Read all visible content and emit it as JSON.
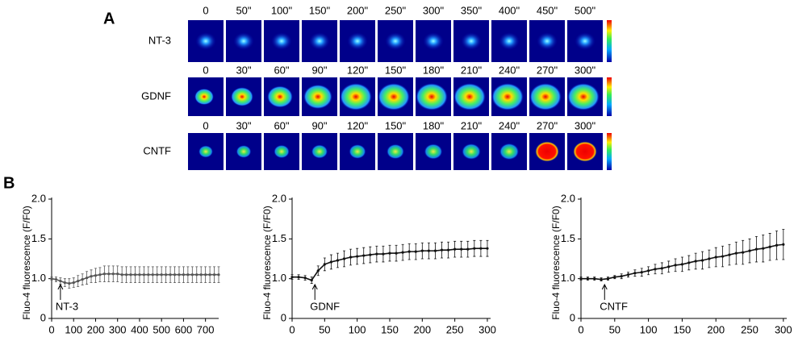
{
  "panel_a": {
    "label": "A",
    "rows": [
      {
        "name": "NT-3",
        "times": [
          "0",
          "50\"",
          "100\"",
          "150\"",
          "200\"",
          "250\"",
          "300\"",
          "350\"",
          "400\"",
          "450\"",
          "500\""
        ]
      },
      {
        "name": "GDNF",
        "times": [
          "0",
          "30\"",
          "60\"",
          "90\"",
          "120\"",
          "150\"",
          "180\"",
          "210\"",
          "240\"",
          "270\"",
          "300\""
        ]
      },
      {
        "name": "CNTF",
        "times": [
          "0",
          "30\"",
          "60\"",
          "90\"",
          "120\"",
          "150\"",
          "180\"",
          "210\"",
          "240\"",
          "270\"",
          "300\""
        ]
      }
    ]
  },
  "panel_b": {
    "label": "B"
  },
  "chart_data": [
    {
      "type": "line",
      "ylabel": "Fluo-4 fluorescence (F/F0)",
      "x": [
        0,
        20,
        40,
        60,
        80,
        100,
        120,
        140,
        160,
        180,
        200,
        220,
        240,
        260,
        280,
        300,
        320,
        340,
        360,
        380,
        400,
        420,
        440,
        460,
        480,
        500,
        520,
        540,
        560,
        580,
        600,
        620,
        640,
        660,
        680,
        700,
        720,
        740,
        760
      ],
      "series": [
        {
          "color": "#555555",
          "values": [
            1.0,
            0.99,
            0.97,
            0.95,
            0.94,
            0.95,
            0.97,
            0.99,
            1.01,
            1.03,
            1.04,
            1.05,
            1.06,
            1.06,
            1.06,
            1.06,
            1.05,
            1.05,
            1.05,
            1.05,
            1.05,
            1.05,
            1.05,
            1.05,
            1.05,
            1.05,
            1.05,
            1.05,
            1.05,
            1.05,
            1.05,
            1.05,
            1.05,
            1.05,
            1.05,
            1.05,
            1.05,
            1.05,
            1.05
          ],
          "errors": [
            0.02,
            0.03,
            0.04,
            0.05,
            0.06,
            0.06,
            0.07,
            0.07,
            0.08,
            0.08,
            0.09,
            0.09,
            0.1,
            0.1,
            0.1,
            0.1,
            0.1,
            0.1,
            0.1,
            0.1,
            0.1,
            0.1,
            0.1,
            0.1,
            0.1,
            0.1,
            0.1,
            0.1,
            0.1,
            0.1,
            0.1,
            0.1,
            0.1,
            0.1,
            0.1,
            0.1,
            0.1,
            0.1,
            0.1
          ]
        }
      ],
      "annotation": {
        "text": "NT-3",
        "x": 40
      },
      "xlim": [
        0,
        760
      ],
      "xticks": [
        0,
        100,
        200,
        300,
        400,
        500,
        600,
        700
      ],
      "ylim": [
        0,
        2
      ],
      "ybreak": [
        0,
        0.5
      ],
      "yticks": [
        0,
        {
          "value": 1,
          "label": "1.0"
        },
        {
          "value": 1.5,
          "label": "1.5"
        },
        {
          "value": 2,
          "label": "2.0"
        }
      ]
    },
    {
      "type": "line",
      "ylabel": "Fluo-4 fluorescence (F/F0)",
      "x": [
        0,
        10,
        20,
        30,
        40,
        50,
        60,
        70,
        80,
        90,
        100,
        110,
        120,
        130,
        140,
        150,
        160,
        170,
        180,
        190,
        200,
        210,
        220,
        230,
        240,
        250,
        260,
        270,
        280,
        290,
        300
      ],
      "series": [
        {
          "color": "#111111",
          "values": [
            1.02,
            1.02,
            1.01,
            0.98,
            1.1,
            1.18,
            1.21,
            1.23,
            1.25,
            1.27,
            1.28,
            1.29,
            1.3,
            1.31,
            1.31,
            1.32,
            1.32,
            1.33,
            1.34,
            1.34,
            1.35,
            1.35,
            1.35,
            1.36,
            1.36,
            1.37,
            1.37,
            1.37,
            1.38,
            1.38,
            1.38
          ],
          "errors": [
            0.03,
            0.03,
            0.03,
            0.04,
            0.06,
            0.08,
            0.09,
            0.09,
            0.1,
            0.1,
            0.1,
            0.1,
            0.1,
            0.1,
            0.1,
            0.1,
            0.1,
            0.1,
            0.1,
            0.1,
            0.1,
            0.1,
            0.1,
            0.1,
            0.1,
            0.1,
            0.1,
            0.1,
            0.1,
            0.1,
            0.1
          ]
        }
      ],
      "annotation": {
        "text": "GDNF",
        "x": 35
      },
      "xlim": [
        0,
        305
      ],
      "xticks": [
        0,
        50,
        100,
        150,
        200,
        250,
        300
      ],
      "ylim": [
        0,
        2
      ],
      "ybreak": [
        0,
        0.5
      ],
      "yticks": [
        0,
        {
          "value": 1,
          "label": "1.0"
        },
        {
          "value": 1.5,
          "label": "1.5"
        },
        {
          "value": 2,
          "label": "2.0"
        }
      ]
    },
    {
      "type": "line",
      "ylabel": "Fluo-4 fluorescence (F/F0)",
      "x": [
        0,
        10,
        20,
        30,
        40,
        50,
        60,
        70,
        80,
        90,
        100,
        110,
        120,
        130,
        140,
        150,
        160,
        170,
        180,
        190,
        200,
        210,
        220,
        230,
        240,
        250,
        260,
        270,
        280,
        290,
        300
      ],
      "series": [
        {
          "color": "#111111",
          "values": [
            1.0,
            1.0,
            1.0,
            0.99,
            1.0,
            1.02,
            1.03,
            1.05,
            1.07,
            1.08,
            1.1,
            1.12,
            1.13,
            1.15,
            1.17,
            1.18,
            1.2,
            1.22,
            1.23,
            1.25,
            1.27,
            1.28,
            1.3,
            1.32,
            1.33,
            1.35,
            1.37,
            1.38,
            1.4,
            1.42,
            1.43
          ],
          "errors": [
            0.02,
            0.02,
            0.02,
            0.02,
            0.02,
            0.02,
            0.03,
            0.03,
            0.04,
            0.05,
            0.05,
            0.06,
            0.07,
            0.07,
            0.08,
            0.09,
            0.09,
            0.1,
            0.11,
            0.11,
            0.12,
            0.13,
            0.13,
            0.14,
            0.15,
            0.15,
            0.16,
            0.17,
            0.17,
            0.18,
            0.19
          ]
        }
      ],
      "annotation": {
        "text": "CNTF",
        "x": 35
      },
      "xlim": [
        0,
        305
      ],
      "xticks": [
        0,
        50,
        100,
        150,
        200,
        250,
        300
      ],
      "ylim": [
        0,
        2
      ],
      "ybreak": [
        0,
        0.5
      ],
      "yticks": [
        0,
        {
          "value": 1,
          "label": "1.0"
        },
        {
          "value": 1.5,
          "label": "1.5"
        },
        {
          "value": 2,
          "label": "2.0"
        }
      ]
    }
  ]
}
